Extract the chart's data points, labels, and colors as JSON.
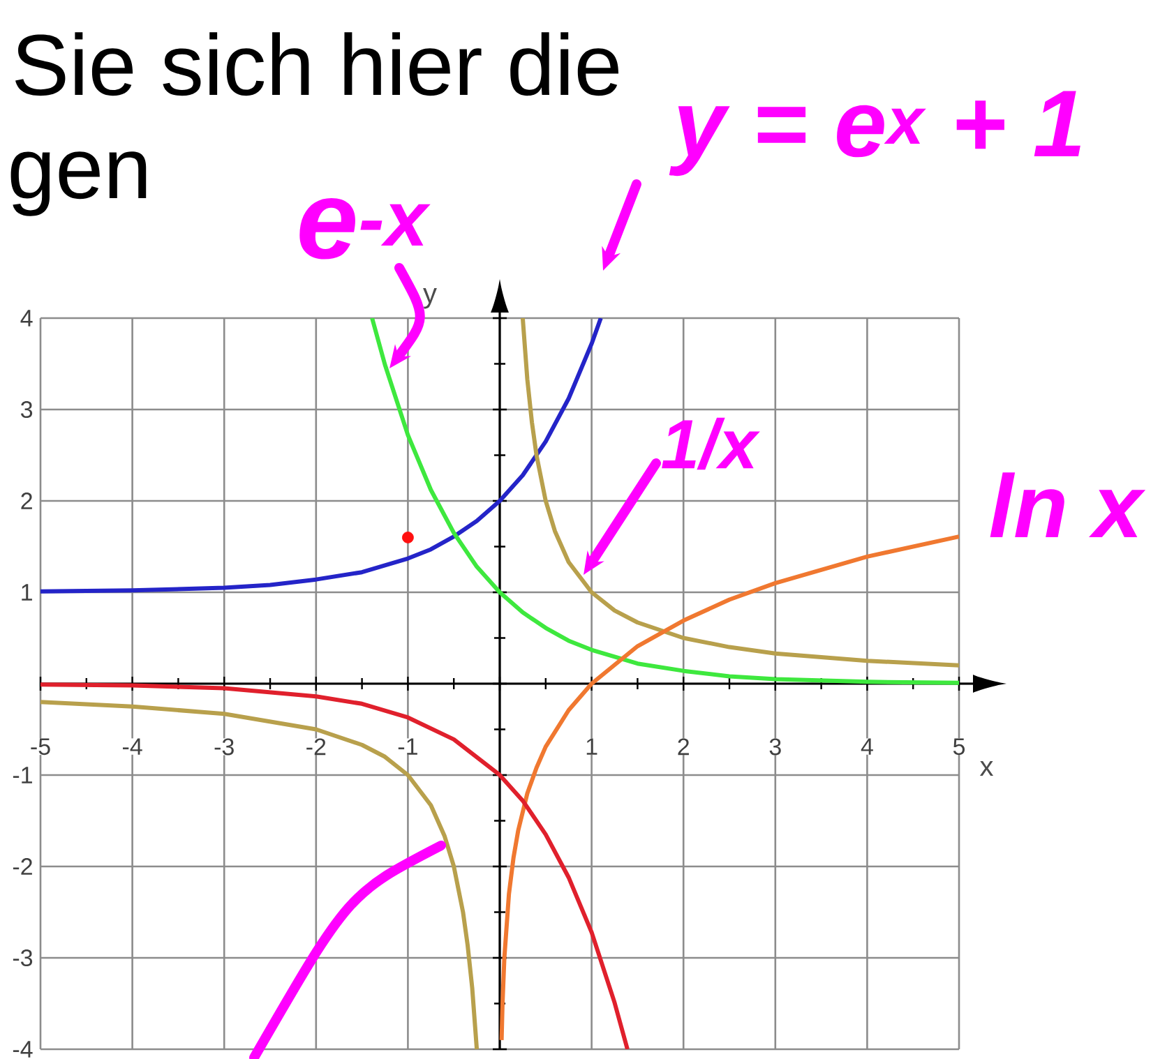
{
  "chart_data": {
    "type": "line",
    "xlabel": "x",
    "ylabel": "y",
    "xlim": [
      -5,
      5
    ],
    "ylim": [
      -4,
      4
    ],
    "xticks": [
      -5,
      -4,
      -3,
      -2,
      -1,
      {
        "value": 0,
        "label": null
      },
      1,
      2,
      3,
      4,
      5
    ],
    "yticks": [
      -4,
      -3,
      -2,
      -1,
      {
        "value": 0,
        "label": null
      },
      1,
      2,
      3,
      4
    ],
    "grid": true,
    "annotations": [
      "Sie sich hier die",
      "gen",
      "e$^{-x}$",
      "y = e$^{x}$ + 1",
      "1/x",
      "ln x"
    ],
    "series": [
      {
        "color": "#2424c8",
        "x": [
          -5,
          -4,
          -3,
          -2.5,
          -2,
          -1.5,
          -1,
          -0.75,
          -0.5,
          -0.25,
          0,
          0.25,
          0.5,
          0.75,
          1,
          1.1
        ],
        "values": [
          1.01,
          1.02,
          1.05,
          1.08,
          1.14,
          1.22,
          1.37,
          1.47,
          1.61,
          1.78,
          2,
          2.28,
          2.65,
          3.12,
          3.72,
          4.0
        ]
      },
      {
        "color": "#3ee83e",
        "x": [
          -1.39,
          -1.25,
          -1,
          -0.75,
          -0.5,
          -0.25,
          0,
          0.25,
          0.5,
          0.75,
          1,
          1.5,
          2,
          2.5,
          3,
          4,
          5
        ],
        "values": [
          4.0,
          3.49,
          2.72,
          2.12,
          1.65,
          1.28,
          1,
          0.78,
          0.61,
          0.47,
          0.37,
          0.22,
          0.14,
          0.08,
          0.05,
          0.02,
          0.01
        ]
      },
      {
        "color": "#b8a04c",
        "x": [
          -5,
          -4,
          -3,
          -2,
          -1.5,
          -1.25,
          -1,
          -0.75,
          -0.6,
          -0.5,
          -0.4,
          -0.35,
          -0.3,
          -0.25,
          0,
          0.25,
          0.3,
          0.35,
          0.4,
          0.5,
          0.6,
          0.75,
          1,
          1.25,
          1.5,
          2,
          2.5,
          3,
          4,
          5
        ],
        "values": [
          -0.2,
          -0.25,
          -0.33,
          -0.5,
          -0.67,
          -0.8,
          -1,
          -1.33,
          -1.67,
          -2,
          -2.5,
          -2.86,
          -3.33,
          -4,
          null,
          4,
          3.33,
          2.86,
          2.5,
          2,
          1.67,
          1.33,
          1,
          0.8,
          0.67,
          0.5,
          0.4,
          0.33,
          0.25,
          0.2
        ]
      },
      {
        "color": "#f07830",
        "x": [
          0.02,
          0.03,
          0.05,
          0.1,
          0.15,
          0.2,
          0.3,
          0.4,
          0.5,
          0.75,
          1,
          1.5,
          2,
          2.5,
          3,
          4,
          5
        ],
        "values": [
          -3.9,
          -3.5,
          -3.0,
          -2.3,
          -1.9,
          -1.61,
          -1.2,
          -0.92,
          -0.69,
          -0.29,
          0,
          0.41,
          0.69,
          0.92,
          1.1,
          1.39,
          1.61
        ]
      },
      {
        "color": "#e0202c",
        "x": [
          -5,
          -4,
          -3,
          -2,
          -1.5,
          -1,
          -0.5,
          0,
          0.25,
          0.5,
          0.75,
          1,
          1.25,
          1.39
        ],
        "values": [
          -0.01,
          -0.02,
          -0.05,
          -0.14,
          -0.22,
          -0.37,
          -0.61,
          -1,
          -1.28,
          -1.65,
          -2.12,
          -2.72,
          -3.49,
          -4.0
        ]
      },
      {
        "type": "scatter",
        "color": "#ff1010",
        "x": [
          -1
        ],
        "values": [
          1.6
        ]
      }
    ]
  }
}
